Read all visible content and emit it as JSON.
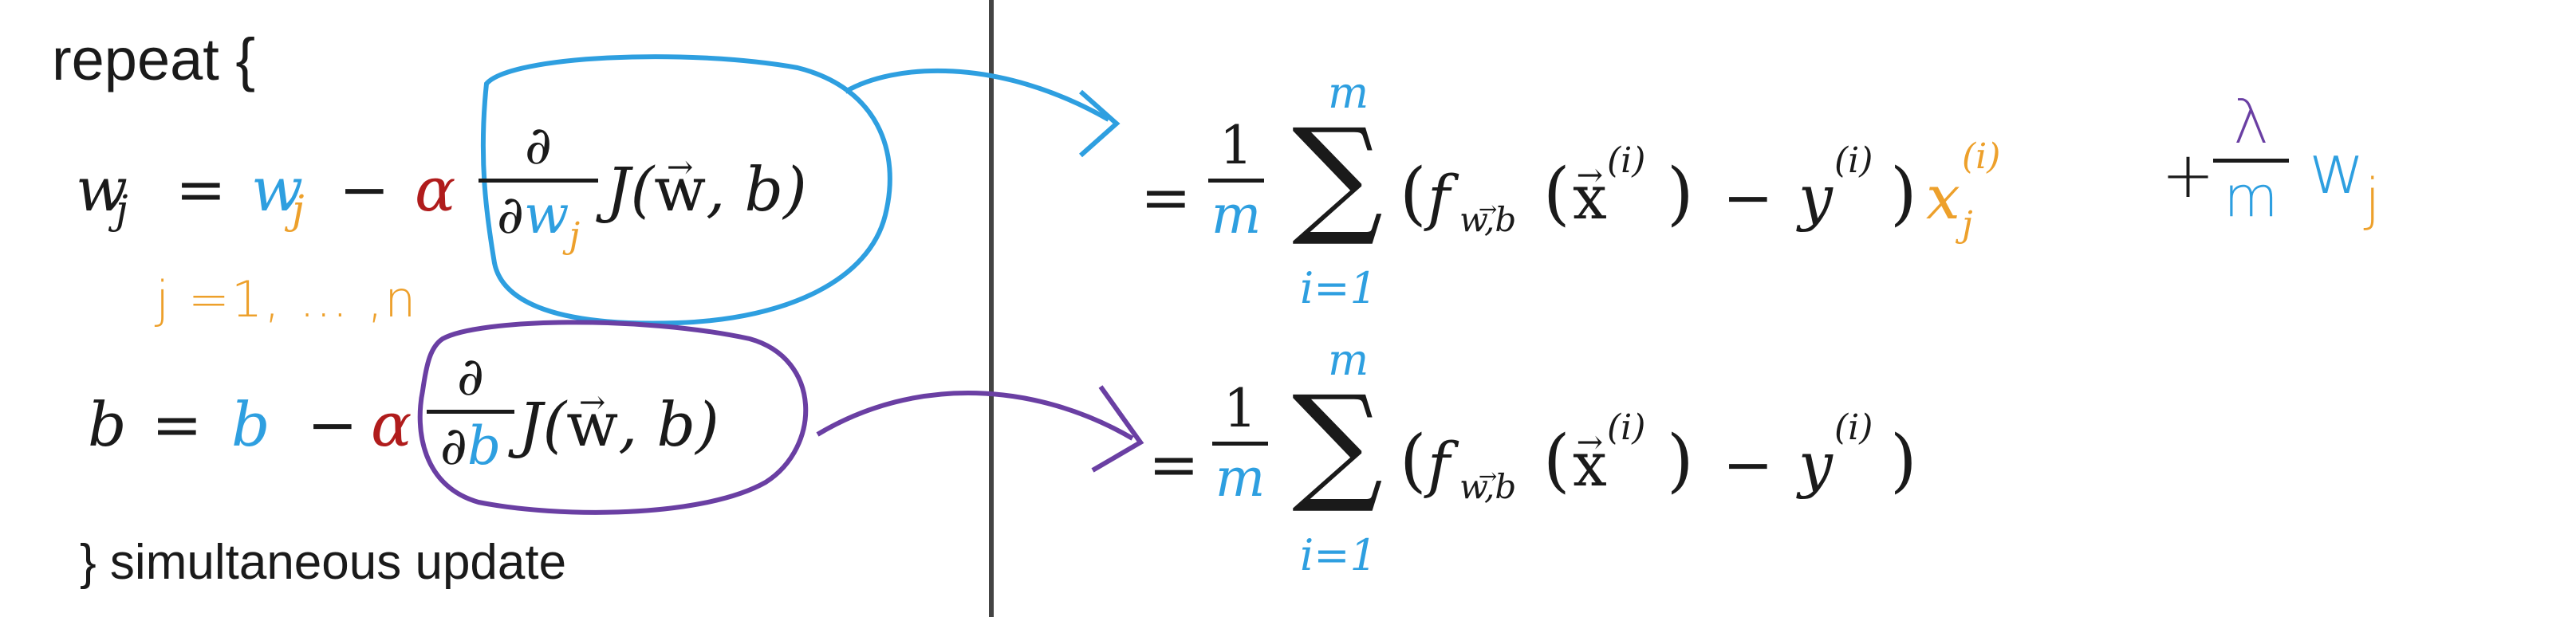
{
  "left": {
    "repeat_label": "repeat {",
    "closing_label": "} simultaneous update",
    "w_update": {
      "lhs": "w",
      "lhs_sub": "j",
      "eq": "=",
      "w": "w",
      "w_sub": "j",
      "minus": "−",
      "alpha": "α",
      "partial_num": "∂",
      "partial_den": "∂",
      "partial_den_var": "w",
      "partial_den_sub": "j",
      "J_expr": "J(",
      "w_vec": "w",
      "J_tail": ", b)"
    },
    "index_note": "j =1, … ,n",
    "b_update": {
      "lhs": "b",
      "eq": "=",
      "b": "b",
      "minus": "−",
      "alpha": "α",
      "partial_num": "∂",
      "partial_den": "∂",
      "partial_den_var": "b",
      "J_expr": "J(",
      "w_vec": "w",
      "J_tail": ", b)"
    }
  },
  "right": {
    "w_derivative": {
      "eq": "=",
      "frac_num": "1",
      "frac_den": "m",
      "sum_top": "m",
      "sum_sym": "∑",
      "sum_bottom": "i=1",
      "open": "(",
      "f": "f",
      "f_sub": "w,b",
      "x_open": "(",
      "x": "x",
      "x_sup": "(i)",
      "x_close": ")",
      "minus": "−",
      "y": "y",
      "y_sup": "(i)",
      "close": ")",
      "xj": "x",
      "xj_sub": "j",
      "xj_sup": "(i)",
      "reg_plus": "+",
      "reg_num": "λ",
      "reg_den": "m",
      "reg_w": "w",
      "reg_sub": "j"
    },
    "b_derivative": {
      "eq": "=",
      "frac_num": "1",
      "frac_den": "m",
      "sum_top": "m",
      "sum_sym": "∑",
      "sum_bottom": "i=1",
      "open": "(",
      "f": "f",
      "f_sub": "w,b",
      "x_open": "(",
      "x": "x",
      "x_sup": "(i)",
      "x_close": ")",
      "minus": "−",
      "y": "y",
      "y_sup": "(i)",
      "close": ")"
    }
  },
  "colors": {
    "blue": "#2e9fe0",
    "orange": "#eda02b",
    "red": "#b01c1c",
    "purple": "#6a3fa3",
    "divider": "#444444"
  }
}
